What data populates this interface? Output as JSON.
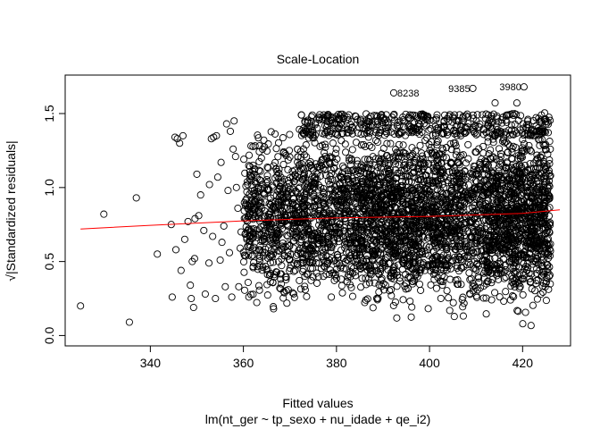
{
  "chart_data": {
    "type": "scatter",
    "title": "Scale-Location",
    "xlabel": "Fitted values",
    "subtitle": "lm(nt_ger ~ tp_sexo + nu_idade + qe_i2)",
    "ylabel": "√|Standardized residuals|",
    "xlim": [
      321.7,
      430.3
    ],
    "ylim": [
      -0.07,
      1.76
    ],
    "x_ticks": [
      340,
      360,
      380,
      400,
      420
    ],
    "y_ticks": [
      0.0,
      0.5,
      1.0,
      1.5
    ],
    "y_tick_labels": [
      "0.0",
      "0.5",
      "1.0",
      "1.5"
    ],
    "grid": false,
    "point_color": "#000000",
    "smooth_color": "#ff0000",
    "smoother": {
      "x": [
        325,
        340,
        360,
        380,
        400,
        420,
        428
      ],
      "y": [
        0.72,
        0.745,
        0.775,
        0.795,
        0.805,
        0.825,
        0.85
      ]
    },
    "outliers": [
      {
        "label": "8238",
        "x": 392.3,
        "y": 1.64
      },
      {
        "label": "9385",
        "x": 409.3,
        "y": 1.67
      },
      {
        "label": "3980",
        "x": 420.3,
        "y": 1.68
      }
    ],
    "points": [
      [
        325.0,
        0.2
      ],
      [
        330.0,
        0.82
      ],
      [
        335.5,
        0.09
      ],
      [
        337.0,
        0.93
      ],
      [
        341.5,
        0.55
      ],
      [
        344.5,
        0.75
      ],
      [
        344.7,
        0.26
      ],
      [
        345.5,
        0.58
      ],
      [
        345.3,
        1.34
      ],
      [
        345.8,
        1.33
      ],
      [
        346.3,
        1.3
      ],
      [
        346.6,
        0.44
      ],
      [
        347.0,
        1.35
      ],
      [
        347.4,
        0.65
      ],
      [
        348.1,
        0.77
      ],
      [
        348.6,
        0.34
      ],
      [
        348.8,
        0.25
      ],
      [
        349.0,
        0.5
      ],
      [
        349.3,
        0.19
      ],
      [
        349.5,
        0.52
      ],
      [
        349.6,
        0.79
      ],
      [
        350.0,
        1.09
      ],
      [
        350.4,
        0.81
      ],
      [
        350.8,
        0.95
      ],
      [
        351.5,
        0.71
      ],
      [
        351.8,
        0.28
      ],
      [
        352.6,
        0.49
      ],
      [
        352.7,
        1.02
      ],
      [
        353.1,
        1.33
      ],
      [
        353.4,
        0.67
      ],
      [
        353.6,
        1.34
      ],
      [
        354.0,
        0.25
      ],
      [
        354.2,
        1.35
      ],
      [
        354.5,
        1.07
      ],
      [
        355.0,
        0.51
      ],
      [
        355.2,
        1.17
      ],
      [
        355.4,
        0.63
      ],
      [
        355.8,
        0.74
      ],
      [
        356.1,
        0.33
      ],
      [
        356.4,
        1.43
      ],
      [
        356.7,
        0.98
      ],
      [
        357.0,
        0.56
      ],
      [
        357.2,
        1.38
      ],
      [
        357.5,
        0.26
      ],
      [
        357.8,
        1.26
      ],
      [
        358.0,
        1.45
      ],
      [
        358.3,
        1.21
      ],
      [
        358.5,
        1.0
      ],
      [
        358.8,
        0.86
      ],
      [
        359.0,
        0.33
      ],
      [
        359.3,
        0.59
      ],
      [
        359.5,
        0.7
      ]
    ],
    "point_bands": [
      {
        "x": [
          360,
          372
        ],
        "yRange": [
          0.08,
          1.52
        ],
        "density": 520
      },
      {
        "x": [
          372,
          385
        ],
        "yRange": [
          0.05,
          1.55
        ],
        "density": 650
      },
      {
        "x": [
          385,
          398
        ],
        "yRange": [
          0.02,
          1.58
        ],
        "density": 900
      },
      {
        "x": [
          398,
          412
        ],
        "yRange": [
          0.02,
          1.6
        ],
        "density": 800
      },
      {
        "x": [
          412,
          426
        ],
        "yRange": [
          0.02,
          1.6
        ],
        "density": 1100
      }
    ],
    "top_cluster": {
      "yRange": [
        1.35,
        1.5
      ],
      "x": [
        372,
        426
      ],
      "density": 380
    }
  }
}
